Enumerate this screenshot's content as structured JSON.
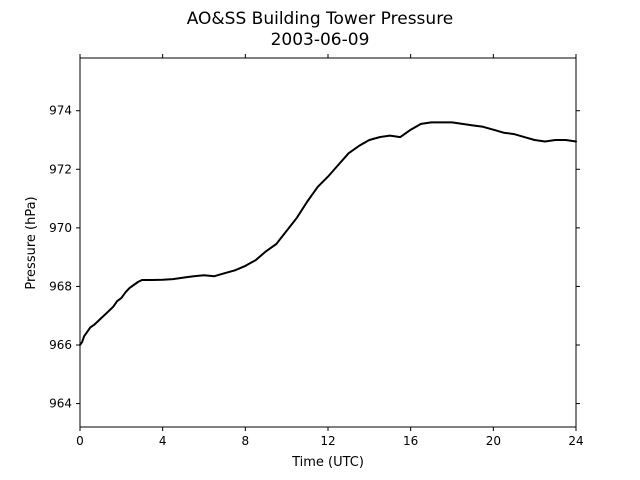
{
  "chart_data": {
    "type": "line",
    "title": "AO&SS Building Tower Pressure",
    "subtitle": "2003-06-09",
    "xlabel": "Time (UTC)",
    "ylabel": "Pressure (hPa)",
    "xlim": [
      0,
      24
    ],
    "ylim": [
      963.2,
      975.8
    ],
    "xticks": [
      0,
      4,
      8,
      12,
      16,
      20,
      24
    ],
    "yticks": [
      964,
      966,
      968,
      970,
      972,
      974
    ],
    "xtick_labels": [
      "0",
      "4",
      "8",
      "12",
      "16",
      "20",
      "24"
    ],
    "ytick_labels": [
      "964",
      "966",
      "968",
      "970",
      "972",
      "974"
    ],
    "top_ticks": true,
    "right_ticks": true,
    "grid": false,
    "legend": false,
    "line_color": "#000000",
    "series": [
      {
        "x": [
          0,
          0.1,
          0.2,
          0.3,
          0.5,
          0.7,
          1.0,
          1.3,
          1.6,
          1.8,
          2.0,
          2.2,
          2.4,
          2.6,
          2.8,
          3.0,
          3.2,
          3.5,
          4.0,
          4.5,
          5.0,
          5.5,
          6.0,
          6.5,
          7.0,
          7.5,
          8.0,
          8.5,
          9.0,
          9.5,
          10.0,
          10.5,
          11.0,
          11.5,
          12.0,
          12.5,
          13.0,
          13.5,
          14.0,
          14.5,
          15.0,
          15.5,
          16.0,
          16.5,
          17.0,
          17.5,
          18.0,
          18.5,
          19.0,
          19.5,
          20.0,
          20.5,
          21.0,
          21.5,
          22.0,
          22.5,
          23.0,
          23.5,
          24.0
        ],
        "values": [
          966.0,
          966.1,
          966.3,
          966.4,
          966.6,
          966.7,
          966.9,
          967.1,
          967.3,
          967.5,
          967.6,
          967.8,
          967.95,
          968.05,
          968.15,
          968.22,
          968.22,
          968.22,
          968.23,
          968.25,
          968.3,
          968.35,
          968.38,
          968.35,
          968.45,
          968.55,
          968.7,
          968.9,
          969.2,
          969.45,
          969.9,
          970.35,
          970.9,
          971.4,
          971.75,
          972.15,
          972.55,
          972.8,
          973.0,
          973.1,
          973.15,
          973.1,
          973.35,
          973.55,
          973.6,
          973.6,
          973.6,
          973.55,
          973.5,
          973.45,
          973.35,
          973.25,
          973.2,
          973.1,
          973.0,
          972.95,
          973.0,
          973.0,
          972.95
        ]
      }
    ]
  }
}
